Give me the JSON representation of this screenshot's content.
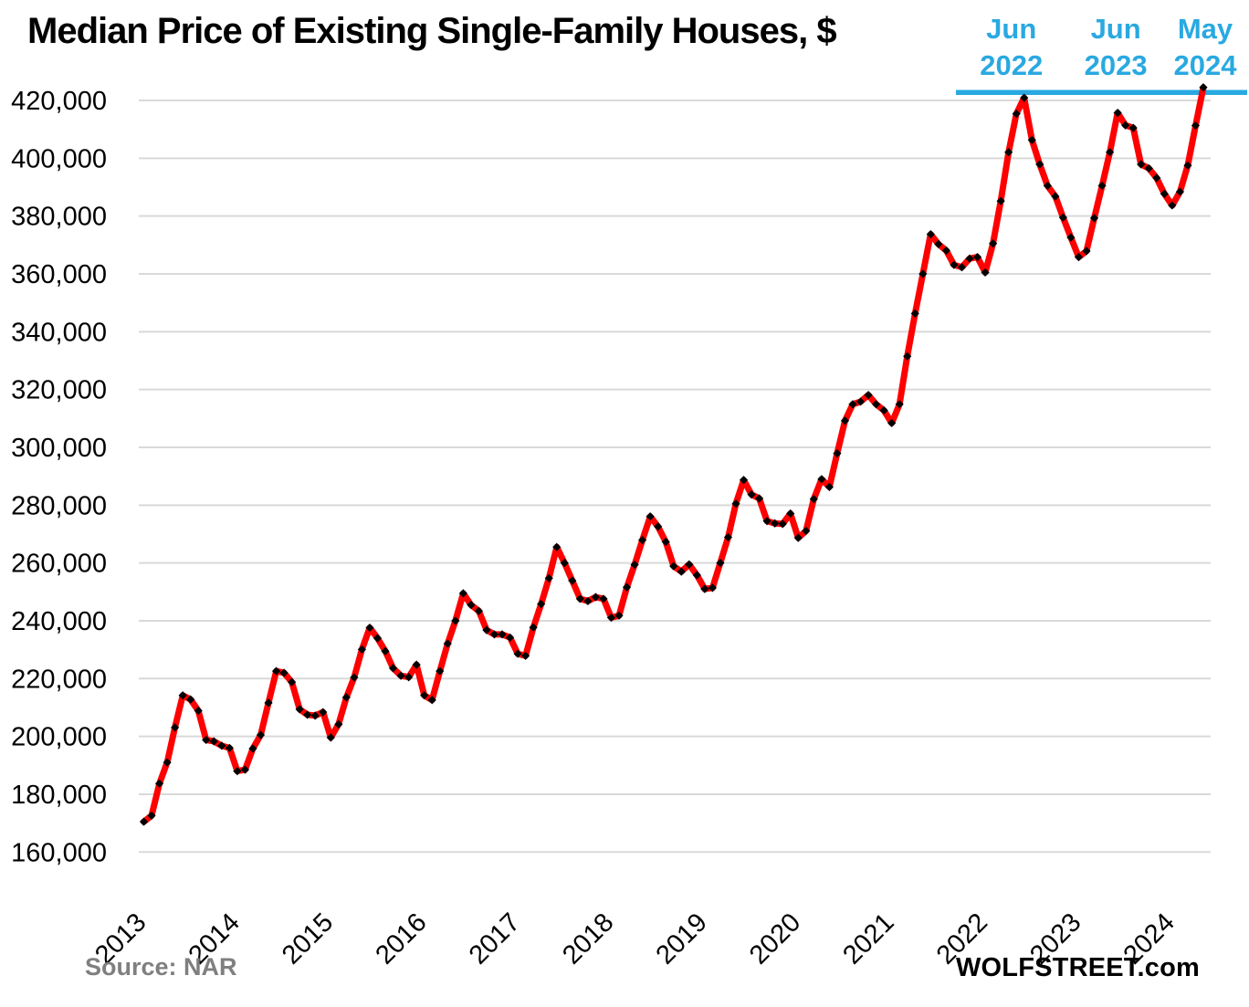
{
  "header": {
    "title": "Median Price of Existing Single-Family Houses, $"
  },
  "annotations": {
    "color": "#29a9e1",
    "items": [
      {
        "line1": "Jun",
        "line2": "2022",
        "month": "2022-06",
        "peak_value": 420900
      },
      {
        "line1": "Jun",
        "line2": "2023",
        "month": "2023-06",
        "peak_value": 415700
      },
      {
        "line1": "May",
        "line2": "2024",
        "month": "2024-05",
        "peak_value": 424500
      }
    ]
  },
  "footer": {
    "source": "Source: NAR",
    "brand": "WOLFSTREET.com"
  },
  "colors": {
    "line": "#ff0000",
    "marker": "#000000",
    "gridline": "#d9d9d9",
    "annotation_cyan": "#29a9e1",
    "source_gray": "#7f7f7f",
    "text": "#000000",
    "background": "#ffffff"
  },
  "chart_data": {
    "type": "line",
    "title": "Median Price of Existing Single-Family Houses, $",
    "xlabel": "",
    "ylabel": "",
    "grid": "horizontal-only",
    "legend": "none",
    "x_start_month": "2013-01",
    "x_end_month": "2024-05",
    "x_axis": {
      "unit": "month",
      "tick_unit": "year",
      "tick_labels": [
        "2013",
        "2014",
        "2015",
        "2016",
        "2017",
        "2018",
        "2019",
        "2020",
        "2021",
        "2022",
        "2023",
        "2024"
      ]
    },
    "y_axis": {
      "range": [
        160000,
        420000
      ],
      "tick_step": 20000,
      "tick_values": [
        160000,
        180000,
        200000,
        220000,
        240000,
        260000,
        280000,
        300000,
        320000,
        340000,
        360000,
        380000,
        400000,
        420000
      ],
      "tick_labels": [
        "160,000",
        "180,000",
        "200,000",
        "220,000",
        "240,000",
        "260,000",
        "280,000",
        "300,000",
        "320,000",
        "340,000",
        "360,000",
        "380,000",
        "400,000",
        "420,000"
      ]
    },
    "series": [
      {
        "name": "Median price of existing single-family houses, $, monthly (Jan 2013 - May 2024)",
        "color": "#ff0000",
        "marker": "black-diamond",
        "values": [
          170500,
          172600,
          183700,
          191000,
          203100,
          214200,
          212800,
          208900,
          198800,
          198300,
          196800,
          196000,
          188000,
          188500,
          195800,
          200500,
          211600,
          222600,
          222000,
          218800,
          209400,
          207500,
          207200,
          208400,
          199600,
          204200,
          213500,
          220400,
          230100,
          237600,
          234000,
          229500,
          223600,
          221000,
          220500,
          224800,
          214200,
          212600,
          222600,
          232100,
          240000,
          249500,
          245500,
          243400,
          236800,
          235300,
          235300,
          234200,
          228600,
          227900,
          237700,
          245800,
          254700,
          265500,
          260000,
          253900,
          247600,
          246800,
          248200,
          247600,
          241100,
          241800,
          251600,
          259400,
          267900,
          276100,
          272600,
          267300,
          258900,
          257000,
          259500,
          255800,
          251000,
          251400,
          260000,
          268900,
          280500,
          288700,
          283700,
          282300,
          274500,
          273700,
          273500,
          277100,
          268700,
          271100,
          282100,
          289000,
          286300,
          297900,
          309200,
          314900,
          315800,
          318100,
          314900,
          312800,
          308400,
          314900,
          331500,
          346300,
          360000,
          373700,
          370300,
          368100,
          363100,
          362300,
          365300,
          365800,
          360500,
          370500,
          385200,
          402100,
          415400,
          420900,
          406300,
          397900,
          390500,
          386800,
          379500,
          372600,
          365800,
          367900,
          379300,
          390500,
          402100,
          415700,
          411400,
          410500,
          397900,
          396500,
          393200,
          387700,
          383700,
          388400,
          397500,
          411300,
          424500
        ]
      }
    ],
    "annotated_peaks": [
      {
        "label": "Jun 2022",
        "value": 420900
      },
      {
        "label": "Jun 2023",
        "value": 415700
      },
      {
        "label": "May 2024",
        "value": 424500
      }
    ]
  }
}
